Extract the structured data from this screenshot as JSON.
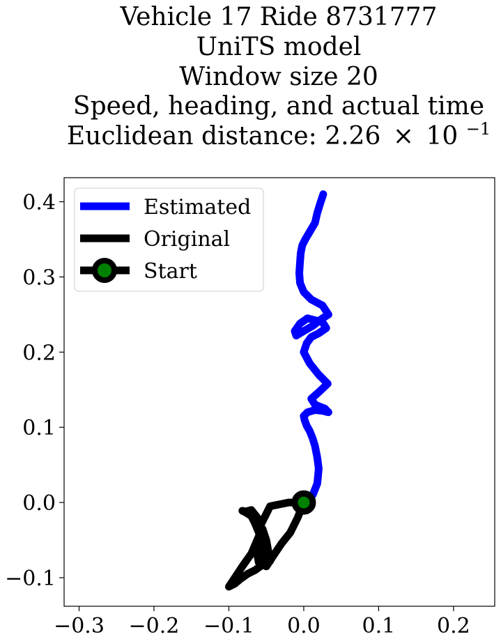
{
  "chart_data": {
    "type": "line",
    "title_lines": [
      "Vehicle 17 Ride 8731777",
      "UniTS model",
      "Window size 20",
      "Speed, heading, and actual time"
    ],
    "distance_label": "Euclidean distance: 2.26",
    "distance_mantissa": "2.26",
    "distance_base": "10",
    "distance_exponent": "−1",
    "xlabel": "",
    "ylabel": "",
    "xlim": [
      -0.32,
      0.255
    ],
    "ylim": [
      -0.138,
      0.432
    ],
    "x_ticks": [
      -0.3,
      -0.2,
      -0.1,
      0.0,
      0.1,
      0.2
    ],
    "x_tick_labels": [
      "−0.3",
      "−0.2",
      "−0.1",
      "0.0",
      "0.1",
      "0.2"
    ],
    "y_ticks": [
      -0.1,
      0.0,
      0.1,
      0.2,
      0.3,
      0.4
    ],
    "y_tick_labels": [
      "−0.1",
      "0.0",
      "0.1",
      "0.2",
      "0.3",
      "0.4"
    ],
    "grid": false,
    "legend_position": "upper-left",
    "series": [
      {
        "name": "Estimated",
        "color": "#0000ff",
        "x": [
          0.0,
          0.012,
          0.018,
          0.02,
          0.018,
          0.015,
          0.012,
          0.008,
          0.004,
          0.001,
          0.0,
          0.005,
          0.015,
          0.025,
          0.033,
          0.028,
          0.015,
          0.01,
          0.018,
          0.032,
          0.02,
          0.008,
          0.0,
          0.004,
          0.01,
          0.02,
          0.03,
          0.025,
          0.005,
          -0.005,
          -0.012,
          -0.01,
          0.0,
          0.012,
          0.025,
          0.033,
          0.025,
          0.01,
          0.0,
          -0.005,
          -0.006,
          -0.005,
          -0.004,
          -0.002,
          0.002,
          0.008,
          0.015,
          0.018,
          0.022,
          0.026
        ],
        "y": [
          0.0,
          0.01,
          0.025,
          0.045,
          0.06,
          0.075,
          0.085,
          0.095,
          0.102,
          0.11,
          0.115,
          0.12,
          0.123,
          0.122,
          0.12,
          0.125,
          0.13,
          0.138,
          0.145,
          0.158,
          0.17,
          0.185,
          0.2,
          0.212,
          0.22,
          0.225,
          0.232,
          0.24,
          0.245,
          0.238,
          0.228,
          0.222,
          0.228,
          0.235,
          0.245,
          0.25,
          0.262,
          0.27,
          0.28,
          0.292,
          0.305,
          0.32,
          0.332,
          0.342,
          0.35,
          0.36,
          0.372,
          0.385,
          0.398,
          0.41
        ]
      },
      {
        "name": "Original",
        "color": "#000000",
        "x": [
          0.0,
          -0.02,
          -0.045,
          -0.06,
          -0.055,
          -0.06,
          -0.052,
          -0.045,
          -0.05,
          -0.055,
          -0.06,
          -0.07,
          -0.082,
          -0.1,
          -0.092,
          -0.085,
          -0.075,
          -0.065,
          -0.058,
          -0.05,
          -0.052,
          -0.055,
          -0.062,
          -0.07,
          -0.078,
          -0.082,
          -0.078,
          -0.07,
          -0.065,
          -0.058,
          -0.062,
          -0.06,
          -0.05,
          -0.04,
          -0.03,
          -0.018,
          -0.008,
          0.0
        ],
        "y": [
          0.0,
          0.0,
          -0.005,
          -0.035,
          -0.06,
          -0.075,
          -0.08,
          -0.078,
          -0.05,
          -0.035,
          -0.045,
          -0.068,
          -0.085,
          -0.112,
          -0.108,
          -0.102,
          -0.095,
          -0.09,
          -0.085,
          -0.075,
          -0.055,
          -0.04,
          -0.02,
          -0.01,
          -0.012,
          -0.011,
          -0.013,
          -0.018,
          -0.028,
          -0.045,
          -0.07,
          -0.08,
          -0.085,
          -0.07,
          -0.055,
          -0.04,
          -0.02,
          0.0
        ]
      },
      {
        "name": "Start",
        "line_color": "#000000",
        "marker_edge_color": "#000000",
        "marker_face_color": "#008000",
        "x": [
          0.0
        ],
        "y": [
          0.0
        ]
      }
    ]
  }
}
